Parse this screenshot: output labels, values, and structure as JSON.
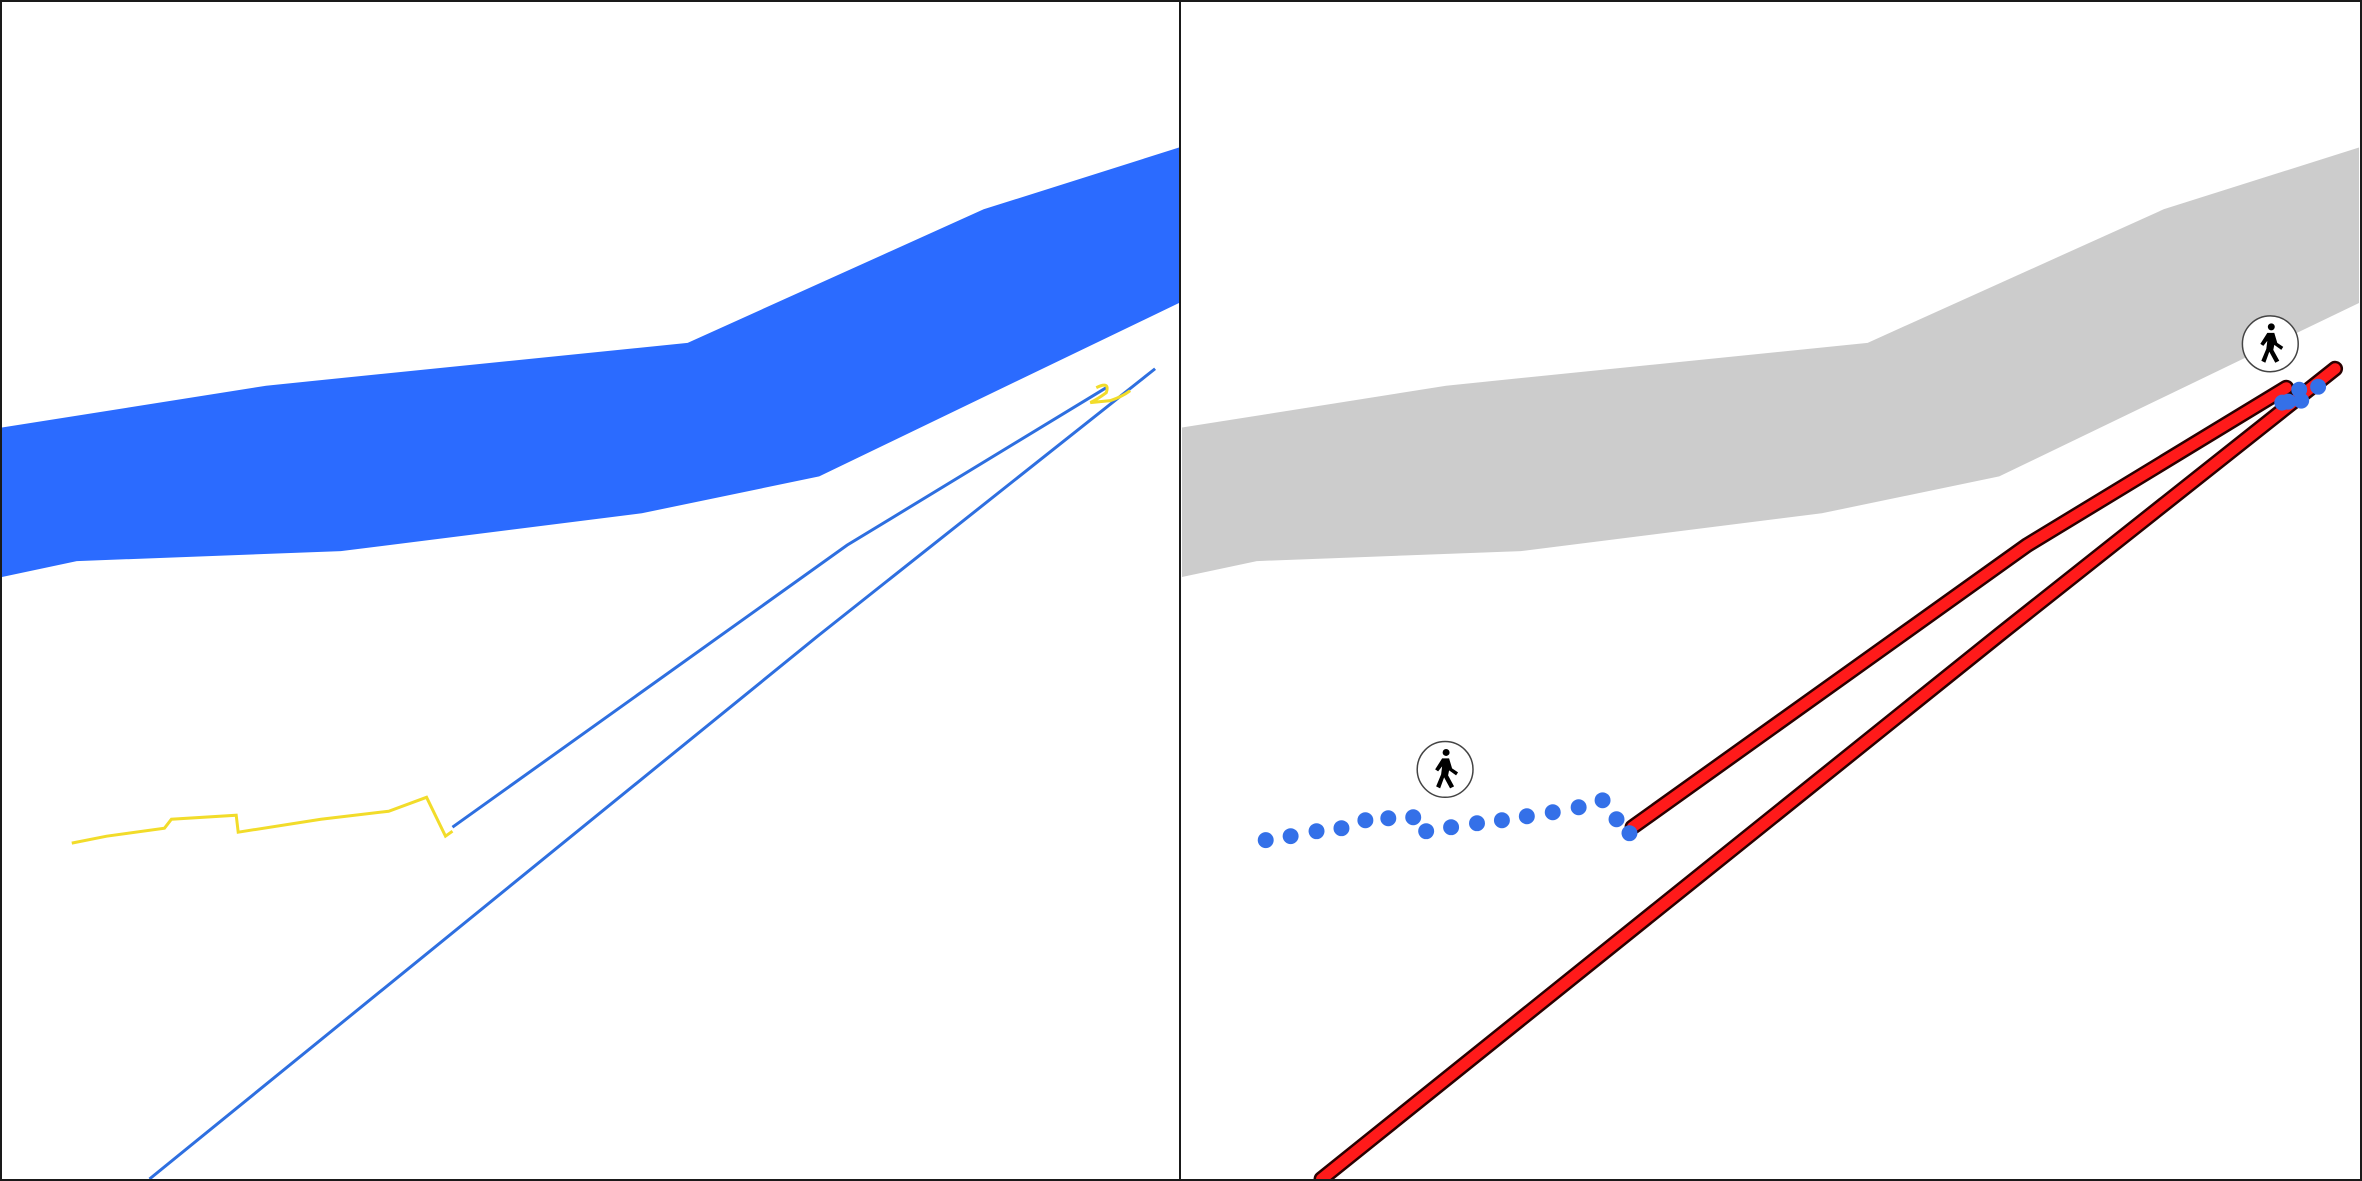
{
  "panels": [
    {
      "id": "left",
      "layers": [
        "river",
        "transit-route",
        "walking-route"
      ]
    },
    {
      "id": "right",
      "layers": [
        "river-muted",
        "transit-route-highlighted",
        "walking-dots",
        "pedestrian-markers"
      ]
    }
  ],
  "colors": {
    "river": "#2b6bff",
    "river_muted": "#cccccc",
    "transit_line": "#2e6fe0",
    "walk_line": "#f2dc2a",
    "highlight_route": "#ff1a1a",
    "highlight_outline": "#2a0000",
    "walk_dot": "#3470e8",
    "marker_bg": "#ffffff",
    "marker_border": "#444444",
    "marker_glyph": "#000000"
  },
  "icons": {
    "pedestrian": "walking-person-icon"
  }
}
